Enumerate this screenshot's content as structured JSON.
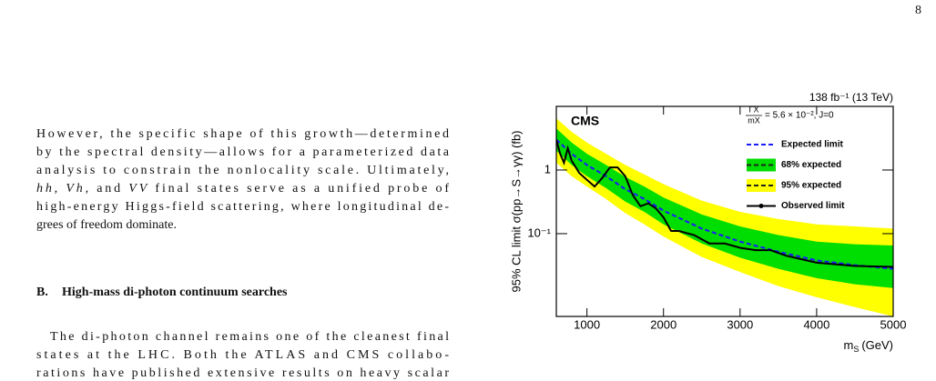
{
  "header": {
    "page_number": "8"
  },
  "paragraphs": [
    {
      "lines": [
        "However, the specific shape of this growth—determined",
        "by the spectral density—allows for a parameterized data",
        "analysis to constrain the nonlocality scale. Ultimately,",
        [
          {
            "text": "hh, Vh,",
            "italic": true
          },
          {
            "text": " and "
          },
          {
            "text": "VV",
            "italic": true
          },
          {
            "text": " final states serve as a unified probe of"
          }
        ],
        "high-energy Higgs-field scattering, where longitudinal de-",
        "grees of freedom dominate."
      ]
    },
    {
      "lines": [
        "The di-photon channel remains one of the cleanest final",
        "states at the LHC. Both the ATLAS and CMS collabo-",
        "rations have published extensive results on heavy scalar"
      ]
    }
  ],
  "section": {
    "number": "B.",
    "title": "High-mass di-photon continuum searches"
  },
  "chart_data": {
    "type": "limit",
    "label": "CMS",
    "lumi": "138 fb⁻¹ (13 TeV)",
    "annotation": {
      "numerator": "ΓX",
      "denominator": "mX",
      "text": "= 5.6 × 10⁻², J=0"
    },
    "y_label": "95% CL limit σ(pp→S→γγ) (fb)",
    "x_label": {
      "symbol": "m",
      "subscript": "S",
      "unit": "(GeV)"
    },
    "log_y": true,
    "xlim": [
      600,
      5000
    ],
    "xticks": [
      1000,
      2000,
      3000,
      4000,
      5000
    ],
    "ylim": [
      0.005,
      10
    ],
    "yticks": [
      {
        "value": 0.1,
        "label": "10⁻¹"
      },
      1
    ],
    "x": [
      600,
      800,
      1000,
      1250,
      1500,
      1750,
      2000,
      2500,
      3000,
      3500,
      4000,
      4500,
      5000
    ],
    "series": [
      {
        "name": "95% expected",
        "kind": "band",
        "color": "#ffff00",
        "lower": [
          1.3,
          0.8,
          0.55,
          0.35,
          0.21,
          0.14,
          0.09,
          0.043,
          0.025,
          0.015,
          0.01,
          0.007,
          0.005
        ],
        "upper": [
          6.5,
          4.0,
          2.7,
          1.8,
          1.2,
          0.85,
          0.6,
          0.33,
          0.22,
          0.17,
          0.14,
          0.13,
          0.12
        ]
      },
      {
        "name": "68% expected",
        "kind": "band",
        "color": "#00dd00",
        "lower": [
          2.0,
          1.2,
          0.8,
          0.52,
          0.32,
          0.22,
          0.14,
          0.07,
          0.042,
          0.028,
          0.02,
          0.016,
          0.014
        ],
        "upper": [
          4.5,
          2.7,
          1.8,
          1.2,
          0.78,
          0.55,
          0.37,
          0.2,
          0.13,
          0.095,
          0.075,
          0.068,
          0.065
        ]
      },
      {
        "name": "Expected limit",
        "kind": "line",
        "line_style": "dashed",
        "color": "#1a1aff",
        "values": [
          3.0,
          1.8,
          1.2,
          0.8,
          0.5,
          0.35,
          0.23,
          0.12,
          0.075,
          0.052,
          0.038,
          0.032,
          0.028
        ]
      },
      {
        "name": "Observed limit",
        "kind": "line",
        "line_style": "solid",
        "color": "#000000",
        "x": [
          600,
          650,
          700,
          750,
          800,
          900,
          1000,
          1100,
          1200,
          1300,
          1400,
          1500,
          1600,
          1700,
          1800,
          1900,
          2000,
          2100,
          2200,
          2400,
          2600,
          2800,
          3000,
          3200,
          3400,
          3600,
          4000,
          4500,
          5000
        ],
        "values": [
          3.0,
          1.8,
          1.3,
          2.2,
          1.4,
          0.9,
          0.7,
          0.55,
          0.75,
          1.1,
          1.1,
          0.8,
          0.4,
          0.27,
          0.3,
          0.25,
          0.18,
          0.11,
          0.11,
          0.095,
          0.07,
          0.07,
          0.06,
          0.055,
          0.055,
          0.045,
          0.035,
          0.031,
          0.03
        ]
      }
    ]
  }
}
